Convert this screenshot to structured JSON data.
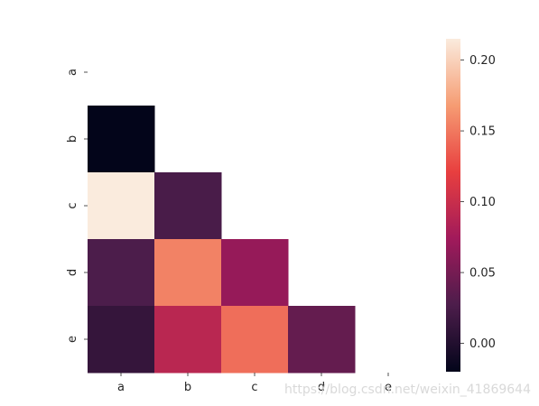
{
  "chart_data": {
    "type": "heatmap",
    "title": "",
    "xlabel": "",
    "ylabel": "",
    "x_labels": [
      "a",
      "b",
      "c",
      "d",
      "e"
    ],
    "y_labels": [
      "a",
      "b",
      "c",
      "d",
      "e"
    ],
    "mask": "upper triangle incl. diagonal",
    "cells": [
      {
        "row": "b",
        "col": "a",
        "value": -0.02
      },
      {
        "row": "c",
        "col": "a",
        "value": 0.215
      },
      {
        "row": "c",
        "col": "b",
        "value": 0.025
      },
      {
        "row": "d",
        "col": "a",
        "value": 0.027
      },
      {
        "row": "d",
        "col": "b",
        "value": 0.155
      },
      {
        "row": "d",
        "col": "c",
        "value": 0.068
      },
      {
        "row": "e",
        "col": "a",
        "value": 0.012
      },
      {
        "row": "e",
        "col": "b",
        "value": 0.09
      },
      {
        "row": "e",
        "col": "c",
        "value": 0.145
      },
      {
        "row": "e",
        "col": "d",
        "value": 0.04
      }
    ],
    "colorbar": {
      "vmin": -0.02,
      "vmax": 0.215,
      "ticks": [
        0.0,
        0.05,
        0.1,
        0.15,
        0.2
      ],
      "tick_labels": [
        "0.00",
        "0.05",
        "0.10",
        "0.15",
        "0.20"
      ],
      "colormap": "rocket",
      "color_stops": [
        "#03051a",
        "#4c1d4b",
        "#a11a5b",
        "#e83f3f",
        "#f69c73",
        "#faebdd"
      ]
    }
  },
  "watermark": "https://blog.csdn.net/weixin_41869644"
}
